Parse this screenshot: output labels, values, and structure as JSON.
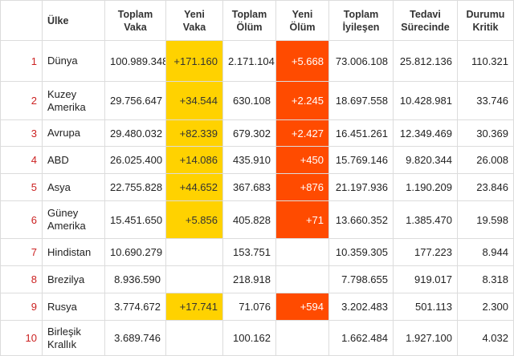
{
  "headers": {
    "rank": "",
    "country": "Ülke",
    "total_cases": [
      "Toplam",
      "Vaka"
    ],
    "new_cases": [
      "Yeni",
      "Vaka"
    ],
    "total_deaths": [
      "Toplam",
      "Ölüm"
    ],
    "new_deaths": [
      "Yeni",
      "Ölüm"
    ],
    "total_recovered": [
      "Toplam",
      "İyileşen"
    ],
    "active": [
      "Tedavi",
      "Sürecinde"
    ],
    "critical": [
      "Durumu",
      "Kritik"
    ]
  },
  "rows": [
    {
      "rank": "1",
      "country": [
        "Dünya"
      ],
      "total_cases": "100.989.348",
      "new_cases": "+171.160",
      "total_deaths": "2.171.104",
      "new_deaths": "+5.668",
      "total_recovered": "73.006.108",
      "active": "25.812.136",
      "critical": "110.321"
    },
    {
      "rank": "2",
      "country": [
        "Kuzey",
        "Amerika"
      ],
      "total_cases": "29.756.647",
      "new_cases": "+34.544",
      "total_deaths": "630.108",
      "new_deaths": "+2.245",
      "total_recovered": "18.697.558",
      "active": "10.428.981",
      "critical": "33.746"
    },
    {
      "rank": "3",
      "country": [
        "Avrupa"
      ],
      "total_cases": "29.480.032",
      "new_cases": "+82.339",
      "total_deaths": "679.302",
      "new_deaths": "+2.427",
      "total_recovered": "16.451.261",
      "active": "12.349.469",
      "critical": "30.369"
    },
    {
      "rank": "4",
      "country": [
        "ABD"
      ],
      "total_cases": "26.025.400",
      "new_cases": "+14.086",
      "total_deaths": "435.910",
      "new_deaths": "+450",
      "total_recovered": "15.769.146",
      "active": "9.820.344",
      "critical": "26.008"
    },
    {
      "rank": "5",
      "country": [
        "Asya"
      ],
      "total_cases": "22.755.828",
      "new_cases": "+44.652",
      "total_deaths": "367.683",
      "new_deaths": "+876",
      "total_recovered": "21.197.936",
      "active": "1.190.209",
      "critical": "23.846"
    },
    {
      "rank": "6",
      "country": [
        "Güney",
        "Amerika"
      ],
      "total_cases": "15.451.650",
      "new_cases": "+5.856",
      "total_deaths": "405.828",
      "new_deaths": "+71",
      "total_recovered": "13.660.352",
      "active": "1.385.470",
      "critical": "19.598"
    },
    {
      "rank": "7",
      "country": [
        "Hindistan"
      ],
      "total_cases": "10.690.279",
      "new_cases": "",
      "total_deaths": "153.751",
      "new_deaths": "",
      "total_recovered": "10.359.305",
      "active": "177.223",
      "critical": "8.944"
    },
    {
      "rank": "8",
      "country": [
        "Brezilya"
      ],
      "total_cases": "8.936.590",
      "new_cases": "",
      "total_deaths": "218.918",
      "new_deaths": "",
      "total_recovered": "7.798.655",
      "active": "919.017",
      "critical": "8.318"
    },
    {
      "rank": "9",
      "country": [
        "Rusya"
      ],
      "total_cases": "3.774.672",
      "new_cases": "+17.741",
      "total_deaths": "71.076",
      "new_deaths": "+594",
      "total_recovered": "3.202.483",
      "active": "501.113",
      "critical": "2.300"
    },
    {
      "rank": "10",
      "country": [
        "Birleşik",
        "Krallık"
      ],
      "total_cases": "3.689.746",
      "new_cases": "",
      "total_deaths": "100.162",
      "new_deaths": "",
      "total_recovered": "1.662.484",
      "active": "1.927.100",
      "critical": "4.032"
    }
  ],
  "colors": {
    "new_cases_highlight": "#ffd200",
    "new_deaths_highlight": "#ff4b00",
    "rank_text": "#cc2222",
    "grid": "#dcdcdc"
  }
}
